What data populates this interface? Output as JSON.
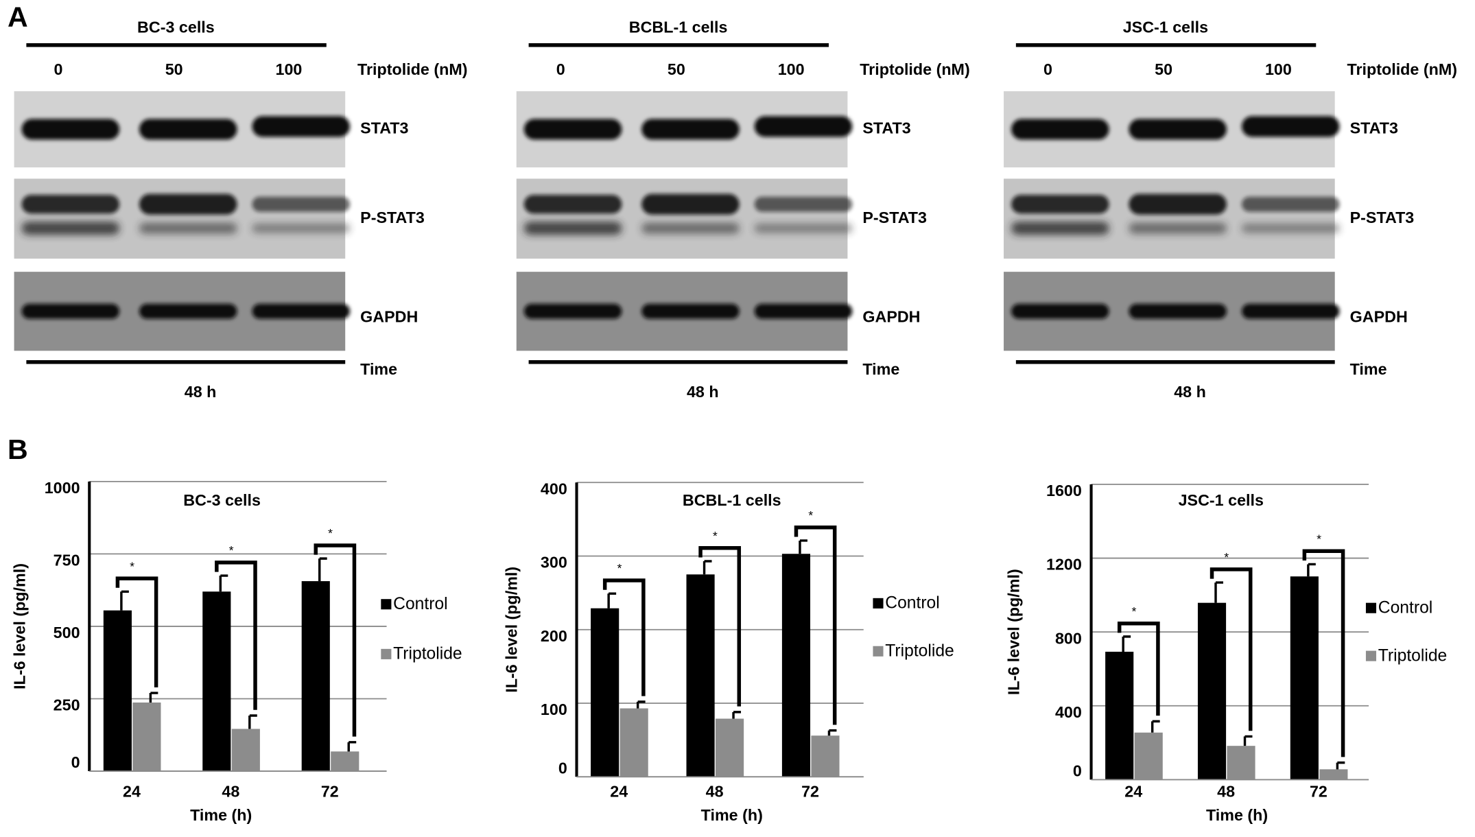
{
  "panel_a": {
    "label": "A",
    "blots": [
      {
        "title": "BC-3 cells",
        "doses": [
          "0",
          "50",
          "100"
        ],
        "dose_label": "Triptolide (nM)",
        "proteins": [
          "STAT3",
          "P-STAT3",
          "GAPDH"
        ],
        "time_label": "Time",
        "time": "48 h"
      },
      {
        "title": "BCBL-1 cells",
        "doses": [
          "0",
          "50",
          "100"
        ],
        "dose_label": "Triptolide (nM)",
        "proteins": [
          "STAT3",
          "P-STAT3",
          "GAPDH"
        ],
        "time_label": "Time",
        "time": "48 h"
      },
      {
        "title": "JSC-1 cells",
        "doses": [
          "0",
          "50",
          "100"
        ],
        "dose_label": "Triptolide (nM)",
        "proteins": [
          "STAT3",
          "P-STAT3",
          "GAPDH"
        ],
        "time_label": "Time",
        "time": "48 h"
      }
    ]
  },
  "panel_b": {
    "label": "B"
  },
  "chart_data": [
    {
      "type": "bar",
      "title": "BC-3 cells",
      "xlabel": "Time (h)",
      "ylabel": "IL-6 level (pg/ml)",
      "categories": [
        "24",
        "48",
        "72"
      ],
      "ylim": [
        0,
        1000
      ],
      "yticks": [
        0,
        250,
        500,
        750,
        1000
      ],
      "grid": true,
      "series": [
        {
          "name": "Control",
          "color": "#000000",
          "values": [
            555,
            620,
            656
          ],
          "errors": [
            65,
            55,
            78
          ]
        },
        {
          "name": "Triptolide",
          "color": "#8c8c8c",
          "values": [
            237,
            146,
            68
          ],
          "errors": [
            33,
            46,
            32
          ]
        }
      ],
      "significance": [
        "*",
        "*",
        "*"
      ]
    },
    {
      "type": "bar",
      "title": "BCBL-1 cells",
      "xlabel": "Time (h)",
      "ylabel": "IL-6 level (pg/ml)",
      "categories": [
        "24",
        "48",
        "72"
      ],
      "ylim": [
        0,
        400
      ],
      "yticks": [
        0,
        100,
        200,
        300,
        400
      ],
      "grid": true,
      "series": [
        {
          "name": "Control",
          "color": "#000000",
          "values": [
            229,
            275,
            303
          ],
          "errors": [
            20,
            18,
            18
          ]
        },
        {
          "name": "Triptolide",
          "color": "#8c8c8c",
          "values": [
            93,
            79,
            56
          ],
          "errors": [
            9,
            9,
            7
          ]
        }
      ],
      "significance": [
        "*",
        "*",
        "*"
      ]
    },
    {
      "type": "bar",
      "title": "JSC-1 cells",
      "xlabel": "Time (h)",
      "ylabel": "IL-6 level (pg/ml)",
      "categories": [
        "24",
        "48",
        "72"
      ],
      "ylim": [
        0,
        1600
      ],
      "yticks": [
        0,
        400,
        800,
        1200,
        1600
      ],
      "grid": true,
      "series": [
        {
          "name": "Control",
          "color": "#000000",
          "values": [
            693,
            958,
            1101
          ],
          "errors": [
            82,
            110,
            66
          ]
        },
        {
          "name": "Triptolide",
          "color": "#8c8c8c",
          "values": [
            255,
            183,
            56
          ],
          "errors": [
            61,
            51,
            36
          ]
        }
      ],
      "significance": [
        "*",
        "*",
        "*"
      ]
    }
  ]
}
